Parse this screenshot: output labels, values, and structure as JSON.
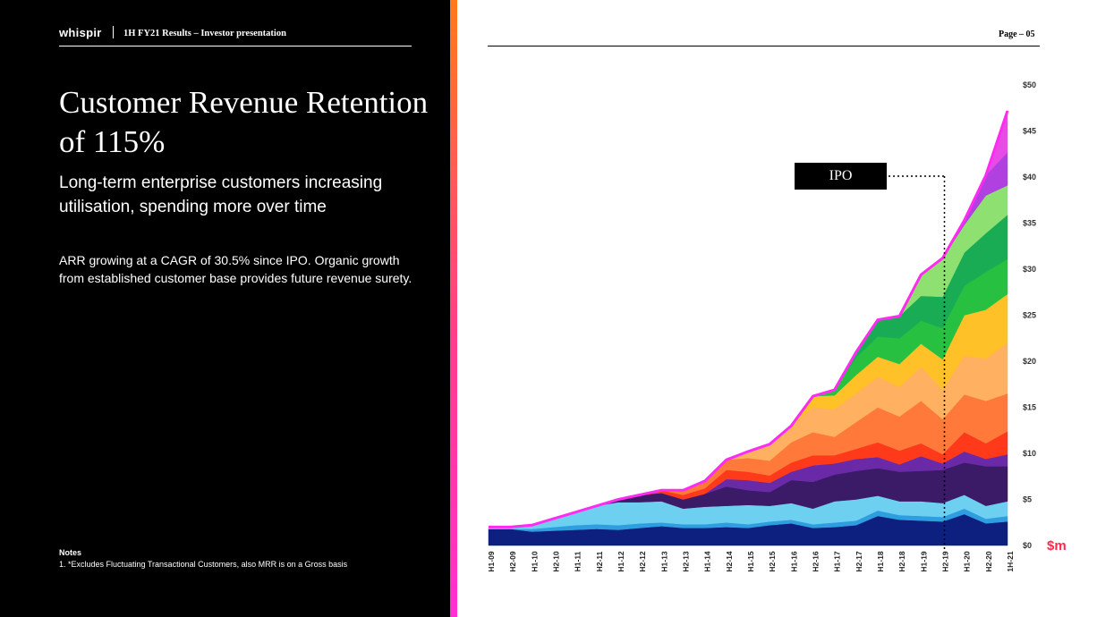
{
  "header": {
    "logo": "whispir",
    "deck_title": "1H FY21 Results – Investor presentation",
    "page_label": "Page – 05"
  },
  "main": {
    "title": "Customer Revenue Retention of 115%",
    "subtitle": "Long-term enterprise customers increasing utilisation, spending more over time",
    "body": "ARR growing at a CAGR of 30.5% since IPO. Organic growth from established customer base provides future revenue surety.",
    "notes_heading": "Notes",
    "notes_1": "1. *Excludes Fluctuating Transactional Customers, also MRR is on a Gross basis"
  },
  "colors": {
    "background_left": "#000000",
    "accent_gradient": [
      "#ff7a1a",
      "#ff2fd1"
    ],
    "total_line": "#ff2bf0",
    "unit_label": "#ff2a4a"
  },
  "chart_data": {
    "type": "area",
    "stacked": true,
    "unit_label": "$m",
    "ylim": [
      0,
      50
    ],
    "y_ticks": [
      "$0",
      "$5",
      "$10",
      "$15",
      "$20",
      "$25",
      "$30",
      "$35",
      "$40",
      "$45",
      "$50"
    ],
    "categories": [
      "H1-09",
      "H2-09",
      "H1-10",
      "H2-10",
      "H1-11",
      "H2-11",
      "H1-12",
      "H2-12",
      "H1-13",
      "H2-13",
      "H1-14",
      "H2-14",
      "H1-15",
      "H2-15",
      "H1-16",
      "H2-16",
      "H1-17",
      "H2-17",
      "H1-18",
      "H2-18",
      "H1-19",
      "H2-19",
      "H1-20",
      "H2-20",
      "1H-21"
    ],
    "annotation": {
      "label": "IPO",
      "category": "H2-19"
    },
    "series": [
      {
        "color": "#0d2080",
        "values": [
          1.8,
          1.8,
          1.5,
          1.6,
          1.7,
          1.8,
          1.7,
          1.9,
          2.1,
          1.9,
          1.9,
          2.0,
          1.9,
          2.2,
          2.4,
          1.9,
          2.0,
          2.2,
          3.2,
          2.8,
          2.7,
          2.6,
          3.4,
          2.4,
          2.6
        ]
      },
      {
        "color": "#2e9ee0",
        "values": [
          0,
          0,
          0.3,
          0.4,
          0.5,
          0.5,
          0.5,
          0.5,
          0.4,
          0.4,
          0.4,
          0.5,
          0.4,
          0.4,
          0.4,
          0.4,
          0.5,
          0.5,
          0.6,
          0.5,
          0.5,
          0.5,
          0.6,
          0.5,
          0.6
        ]
      },
      {
        "color": "#6dd0f0",
        "values": [
          0.2,
          0.2,
          0.4,
          0.9,
          1.4,
          2.0,
          2.5,
          2.3,
          2.3,
          1.7,
          1.9,
          1.8,
          2.1,
          1.7,
          1.8,
          1.7,
          2.3,
          2.3,
          1.6,
          1.5,
          1.6,
          1.5,
          1.5,
          1.4,
          1.6
        ]
      },
      {
        "color": "#3b1a68",
        "values": [
          0,
          0,
          0,
          0,
          0,
          0,
          0.3,
          0.8,
          0.9,
          1.0,
          1.4,
          2.1,
          1.6,
          1.5,
          2.5,
          2.9,
          2.9,
          3.1,
          3.0,
          3.2,
          3.3,
          3.6,
          3.5,
          4.3,
          3.8
        ]
      },
      {
        "color": "#6a2aa8",
        "values": [
          0,
          0,
          0,
          0,
          0,
          0,
          0,
          0,
          0,
          0,
          0,
          0.8,
          1.1,
          1.0,
          0.9,
          1.8,
          1.2,
          1.3,
          1.2,
          0.8,
          1.6,
          0.7,
          1.2,
          0.8,
          1.3
        ]
      },
      {
        "color": "#ff3a1a",
        "values": [
          0,
          0,
          0,
          0,
          0,
          0,
          0,
          0,
          0.3,
          0.5,
          0.6,
          1.0,
          0.9,
          0.8,
          1.0,
          1.1,
          0.9,
          1.1,
          1.6,
          1.5,
          1.4,
          1.0,
          2.1,
          1.7,
          2.5
        ]
      },
      {
        "color": "#ff7a3a",
        "values": [
          0,
          0,
          0,
          0,
          0,
          0,
          0,
          0,
          0,
          0.5,
          0.8,
          1.1,
          1.5,
          1.6,
          2.2,
          2.5,
          2.0,
          2.9,
          3.8,
          3.7,
          4.6,
          3.8,
          4.1,
          4.6,
          4.1
        ]
      },
      {
        "color": "#ffb060",
        "values": [
          0,
          0,
          0,
          0,
          0,
          0,
          0,
          0,
          0,
          0,
          0,
          0,
          0.7,
          1.8,
          1.8,
          2.7,
          3.0,
          3.1,
          3.3,
          3.2,
          3.7,
          3.2,
          4.2,
          4.6,
          5.5
        ]
      },
      {
        "color": "#ffc028",
        "values": [
          0,
          0,
          0,
          0,
          0,
          0,
          0,
          0,
          0,
          0,
          0,
          0,
          0,
          0,
          0,
          1.2,
          1.5,
          2.0,
          2.2,
          2.5,
          2.5,
          3.3,
          4.4,
          5.3,
          5.3
        ]
      },
      {
        "color": "#28c040",
        "values": [
          0,
          0,
          0,
          0,
          0,
          0,
          0,
          0,
          0,
          0,
          0,
          0,
          0,
          0,
          0,
          0,
          0.6,
          1.9,
          2.2,
          2.8,
          2.5,
          3.4,
          3.2,
          4.1,
          3.8
        ]
      },
      {
        "color": "#1aab55",
        "values": [
          0,
          0,
          0,
          0,
          0,
          0,
          0,
          0,
          0,
          0,
          0,
          0,
          0,
          0,
          0,
          0,
          0,
          0.6,
          1.8,
          2.4,
          2.7,
          3.4,
          3.6,
          4.2,
          4.8
        ]
      },
      {
        "color": "#8ee070",
        "values": [
          0,
          0,
          0,
          0,
          0,
          0,
          0,
          0,
          0,
          0,
          0,
          0,
          0,
          0,
          0,
          0,
          0,
          0,
          0,
          0,
          2.3,
          4.2,
          3.0,
          4.1,
          3.2
        ]
      },
      {
        "color": "#b040e0",
        "values": [
          0,
          0,
          0,
          0,
          0,
          0,
          0,
          0,
          0,
          0,
          0,
          0,
          0,
          0,
          0,
          0,
          0,
          0,
          0,
          0,
          0,
          0,
          0.5,
          2.2,
          3.6
        ]
      },
      {
        "color": "#e84ae8",
        "values": [
          0,
          0,
          0,
          0,
          0,
          0,
          0,
          0,
          0,
          0,
          0,
          0,
          0,
          0,
          0,
          0,
          0,
          0,
          0,
          0,
          0,
          0,
          0,
          0,
          4.5
        ]
      }
    ]
  }
}
